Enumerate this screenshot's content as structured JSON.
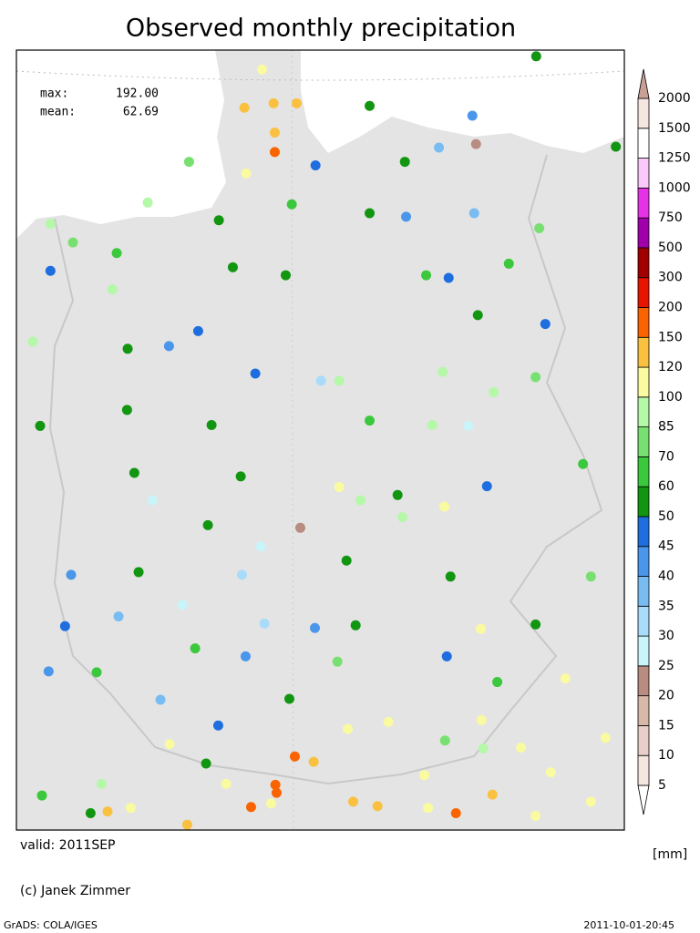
{
  "map": {
    "title": "Observed monthly precipitation",
    "stats": {
      "max_label": "max:",
      "max": "192.00",
      "mean_label": "mean:",
      "mean": "62.69"
    },
    "valid": "valid: 2011SEP",
    "unit": "[mm]",
    "credit": "(c) Janek Zimmer",
    "footer_left": "GrADS: COLA/IGES",
    "footer_right": "2011-10-01-20:45",
    "lonlim": [
      5.5,
      15.5
    ],
    "latlim": [
      46.7,
      55.5
    ],
    "legend": {
      "levels": [
        5,
        10,
        15,
        20,
        25,
        30,
        35,
        40,
        45,
        50,
        60,
        70,
        85,
        100,
        120,
        150,
        200,
        300,
        500,
        750,
        1000,
        1250,
        1500,
        2000
      ],
      "colors": [
        "#ffffff",
        "#f5e6e0",
        "#e8d0c8",
        "#d8b8a8",
        "#b88c80",
        "#c8f4fa",
        "#a8dcfa",
        "#78bcf2",
        "#4a96ea",
        "#1e6ee0",
        "#129612",
        "#3cc83c",
        "#78e070",
        "#b4f8a8",
        "#fafaa0",
        "#fac040",
        "#fa6400",
        "#e61400",
        "#a00000",
        "#a000aa",
        "#e632e6",
        "#fac8fa",
        "#ffffff",
        "#f5e6e0",
        "#c8a096"
      ]
    },
    "stations": [
      {
        "lon": 9.54,
        "lat": 55.28,
        "value": 110
      },
      {
        "lon": 9.73,
        "lat": 54.9,
        "value": 140
      },
      {
        "lon": 9.25,
        "lat": 54.85,
        "value": 140
      },
      {
        "lon": 9.75,
        "lat": 54.57,
        "value": 140
      },
      {
        "lon": 9.75,
        "lat": 54.35,
        "value": 180
      },
      {
        "lon": 9.28,
        "lat": 54.11,
        "value": 110
      },
      {
        "lon": 10.11,
        "lat": 54.9,
        "value": 140
      },
      {
        "lon": 8.34,
        "lat": 54.24,
        "value": 78
      },
      {
        "lon": 11.31,
        "lat": 54.87,
        "value": 55
      },
      {
        "lon": 13.0,
        "lat": 54.76,
        "value": 42
      },
      {
        "lon": 14.05,
        "lat": 55.43,
        "value": 55
      },
      {
        "lon": 15.36,
        "lat": 54.41,
        "value": 55
      },
      {
        "lon": 13.06,
        "lat": 54.44,
        "value": 22
      },
      {
        "lon": 12.45,
        "lat": 54.4,
        "value": 37
      },
      {
        "lon": 11.89,
        "lat": 54.24,
        "value": 55
      },
      {
        "lon": 10.42,
        "lat": 54.2,
        "value": 47
      },
      {
        "lon": 10.03,
        "lat": 53.76,
        "value": 65
      },
      {
        "lon": 8.83,
        "lat": 53.58,
        "value": 55
      },
      {
        "lon": 7.66,
        "lat": 53.78,
        "value": 92
      },
      {
        "lon": 6.06,
        "lat": 53.54,
        "value": 92
      },
      {
        "lon": 6.43,
        "lat": 53.33,
        "value": 78
      },
      {
        "lon": 7.15,
        "lat": 53.21,
        "value": 65
      },
      {
        "lon": 6.06,
        "lat": 53.01,
        "value": 47
      },
      {
        "lon": 7.08,
        "lat": 52.8,
        "value": 92
      },
      {
        "lon": 9.06,
        "lat": 53.05,
        "value": 55
      },
      {
        "lon": 9.93,
        "lat": 52.96,
        "value": 55
      },
      {
        "lon": 12.24,
        "lat": 52.96,
        "value": 65
      },
      {
        "lon": 12.61,
        "lat": 52.93,
        "value": 47
      },
      {
        "lon": 13.6,
        "lat": 53.09,
        "value": 65
      },
      {
        "lon": 13.09,
        "lat": 52.51,
        "value": 55
      },
      {
        "lon": 14.2,
        "lat": 52.41,
        "value": 47
      },
      {
        "lon": 11.31,
        "lat": 53.66,
        "value": 55
      },
      {
        "lon": 11.91,
        "lat": 53.62,
        "value": 42
      },
      {
        "lon": 13.03,
        "lat": 53.66,
        "value": 37
      },
      {
        "lon": 14.1,
        "lat": 53.49,
        "value": 78
      },
      {
        "lon": 5.77,
        "lat": 52.21,
        "value": 92
      },
      {
        "lon": 7.33,
        "lat": 52.13,
        "value": 55
      },
      {
        "lon": 8.01,
        "lat": 52.16,
        "value": 42
      },
      {
        "lon": 8.49,
        "lat": 52.33,
        "value": 47
      },
      {
        "lon": 9.43,
        "lat": 51.85,
        "value": 47
      },
      {
        "lon": 10.51,
        "lat": 51.77,
        "value": 32
      },
      {
        "lon": 10.81,
        "lat": 51.77,
        "value": 92
      },
      {
        "lon": 12.51,
        "lat": 51.87,
        "value": 92
      },
      {
        "lon": 13.35,
        "lat": 51.64,
        "value": 92
      },
      {
        "lon": 14.04,
        "lat": 51.81,
        "value": 78
      },
      {
        "lon": 5.89,
        "lat": 51.26,
        "value": 55
      },
      {
        "lon": 7.32,
        "lat": 51.44,
        "value": 55
      },
      {
        "lon": 8.71,
        "lat": 51.27,
        "value": 55
      },
      {
        "lon": 11.31,
        "lat": 51.32,
        "value": 65
      },
      {
        "lon": 12.34,
        "lat": 51.27,
        "value": 92
      },
      {
        "lon": 12.93,
        "lat": 51.26,
        "value": 28
      },
      {
        "lon": 7.44,
        "lat": 50.73,
        "value": 55
      },
      {
        "lon": 9.19,
        "lat": 50.69,
        "value": 55
      },
      {
        "lon": 10.81,
        "lat": 50.57,
        "value": 110
      },
      {
        "lon": 11.16,
        "lat": 50.42,
        "value": 92
      },
      {
        "lon": 11.77,
        "lat": 50.48,
        "value": 55
      },
      {
        "lon": 12.54,
        "lat": 50.35,
        "value": 110
      },
      {
        "lon": 7.74,
        "lat": 50.42,
        "value": 28
      },
      {
        "lon": 8.65,
        "lat": 50.14,
        "value": 55
      },
      {
        "lon": 9.52,
        "lat": 49.9,
        "value": 28
      },
      {
        "lon": 10.17,
        "lat": 50.11,
        "value": 22
      },
      {
        "lon": 11.85,
        "lat": 50.23,
        "value": 92
      },
      {
        "lon": 13.24,
        "lat": 50.58,
        "value": 47
      },
      {
        "lon": 14.82,
        "lat": 50.83,
        "value": 65
      },
      {
        "lon": 6.4,
        "lat": 49.58,
        "value": 42
      },
      {
        "lon": 7.51,
        "lat": 49.61,
        "value": 55
      },
      {
        "lon": 8.23,
        "lat": 49.24,
        "value": 28
      },
      {
        "lon": 9.21,
        "lat": 49.58,
        "value": 32
      },
      {
        "lon": 10.93,
        "lat": 49.74,
        "value": 55
      },
      {
        "lon": 12.64,
        "lat": 49.56,
        "value": 55
      },
      {
        "lon": 14.95,
        "lat": 49.56,
        "value": 78
      },
      {
        "lon": 6.3,
        "lat": 49.0,
        "value": 47
      },
      {
        "lon": 7.18,
        "lat": 49.11,
        "value": 37
      },
      {
        "lon": 8.44,
        "lat": 48.75,
        "value": 65
      },
      {
        "lon": 9.58,
        "lat": 49.03,
        "value": 32
      },
      {
        "lon": 10.41,
        "lat": 48.98,
        "value": 42
      },
      {
        "lon": 11.08,
        "lat": 49.01,
        "value": 55
      },
      {
        "lon": 13.14,
        "lat": 48.97,
        "value": 110
      },
      {
        "lon": 14.04,
        "lat": 49.02,
        "value": 55
      },
      {
        "lon": 6.03,
        "lat": 48.49,
        "value": 42
      },
      {
        "lon": 6.82,
        "lat": 48.48,
        "value": 65
      },
      {
        "lon": 7.87,
        "lat": 48.17,
        "value": 37
      },
      {
        "lon": 9.27,
        "lat": 48.66,
        "value": 42
      },
      {
        "lon": 9.99,
        "lat": 48.18,
        "value": 55
      },
      {
        "lon": 10.78,
        "lat": 48.6,
        "value": 78
      },
      {
        "lon": 12.58,
        "lat": 48.66,
        "value": 47
      },
      {
        "lon": 13.41,
        "lat": 48.37,
        "value": 65
      },
      {
        "lon": 14.53,
        "lat": 48.41,
        "value": 110
      },
      {
        "lon": 8.02,
        "lat": 47.67,
        "value": 110
      },
      {
        "lon": 8.82,
        "lat": 47.88,
        "value": 47
      },
      {
        "lon": 10.95,
        "lat": 47.84,
        "value": 110
      },
      {
        "lon": 11.62,
        "lat": 47.92,
        "value": 110
      },
      {
        "lon": 12.55,
        "lat": 47.71,
        "value": 78
      },
      {
        "lon": 13.15,
        "lat": 47.94,
        "value": 110
      },
      {
        "lon": 15.19,
        "lat": 47.74,
        "value": 110
      },
      {
        "lon": 10.08,
        "lat": 47.53,
        "value": 185
      },
      {
        "lon": 10.39,
        "lat": 47.47,
        "value": 140
      },
      {
        "lon": 8.62,
        "lat": 47.45,
        "value": 55
      },
      {
        "lon": 9.76,
        "lat": 47.21,
        "value": 192
      },
      {
        "lon": 9.78,
        "lat": 47.12,
        "value": 175
      },
      {
        "lon": 8.95,
        "lat": 47.22,
        "value": 110
      },
      {
        "lon": 9.69,
        "lat": 47.0,
        "value": 110
      },
      {
        "lon": 9.36,
        "lat": 46.96,
        "value": 170
      },
      {
        "lon": 11.04,
        "lat": 47.02,
        "value": 140
      },
      {
        "lon": 11.44,
        "lat": 46.97,
        "value": 140
      },
      {
        "lon": 12.21,
        "lat": 47.32,
        "value": 110
      },
      {
        "lon": 13.18,
        "lat": 47.62,
        "value": 92
      },
      {
        "lon": 13.8,
        "lat": 47.63,
        "value": 110
      },
      {
        "lon": 14.29,
        "lat": 47.35,
        "value": 110
      },
      {
        "lon": 13.33,
        "lat": 47.1,
        "value": 140
      },
      {
        "lon": 12.73,
        "lat": 46.89,
        "value": 175
      },
      {
        "lon": 12.27,
        "lat": 46.95,
        "value": 110
      },
      {
        "lon": 14.95,
        "lat": 47.02,
        "value": 110
      },
      {
        "lon": 7.0,
        "lat": 46.91,
        "value": 140
      },
      {
        "lon": 7.38,
        "lat": 46.95,
        "value": 110
      },
      {
        "lon": 6.72,
        "lat": 46.89,
        "value": 55
      },
      {
        "lon": 5.92,
        "lat": 47.09,
        "value": 65
      },
      {
        "lon": 6.9,
        "lat": 47.22,
        "value": 92
      },
      {
        "lon": 8.31,
        "lat": 46.76,
        "value": 140
      },
      {
        "lon": 14.04,
        "lat": 46.86,
        "value": 110
      }
    ]
  }
}
